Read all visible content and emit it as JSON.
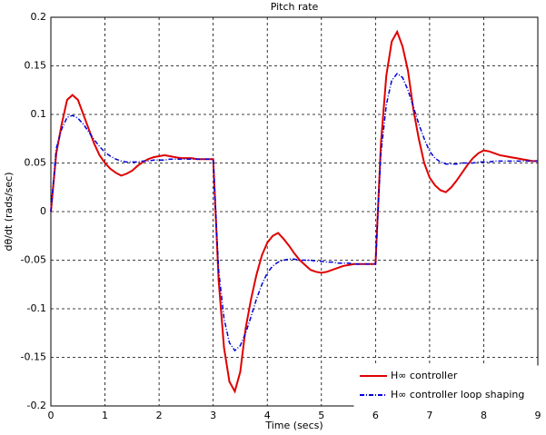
{
  "chart_data": {
    "type": "line",
    "title": "Pitch rate",
    "xlabel": "Time (secs)",
    "ylabel": "dθ/dt (rads/sec)",
    "x": [
      0,
      0.1,
      0.2,
      0.3,
      0.4,
      0.5,
      0.6,
      0.7,
      0.8,
      0.9,
      1,
      1.1,
      1.2,
      1.3,
      1.4,
      1.5,
      1.6,
      1.7,
      1.8,
      1.9,
      2,
      2.1,
      2.2,
      2.3,
      2.4,
      2.5,
      2.6,
      2.7,
      2.8,
      2.9,
      3,
      3.1,
      3.2,
      3.3,
      3.4,
      3.5,
      3.6,
      3.7,
      3.8,
      3.9,
      4,
      4.1,
      4.2,
      4.3,
      4.4,
      4.5,
      4.6,
      4.7,
      4.8,
      4.9,
      5,
      5.1,
      5.2,
      5.3,
      5.4,
      5.5,
      5.6,
      5.7,
      5.8,
      5.9,
      6,
      6.1,
      6.2,
      6.3,
      6.4,
      6.5,
      6.6,
      6.7,
      6.8,
      6.9,
      7,
      7.1,
      7.2,
      7.3,
      7.4,
      7.5,
      7.6,
      7.7,
      7.8,
      7.9,
      8,
      8.1,
      8.2,
      8.3,
      8.4,
      8.5,
      8.6,
      8.7,
      8.8,
      8.9,
      9
    ],
    "series": [
      {
        "name": "H∞ controller",
        "color": "#e00000",
        "linestyle": "solid",
        "values": [
          0,
          0.06,
          0.09,
          0.115,
          0.12,
          0.115,
          0.1,
          0.085,
          0.07,
          0.058,
          0.05,
          0.044,
          0.04,
          0.037,
          0.039,
          0.042,
          0.047,
          0.051,
          0.054,
          0.056,
          0.057,
          0.058,
          0.057,
          0.056,
          0.055,
          0.055,
          0.055,
          0.054,
          0.054,
          0.054,
          0.054,
          -0.07,
          -0.14,
          -0.175,
          -0.185,
          -0.165,
          -0.12,
          -0.09,
          -0.065,
          -0.045,
          -0.032,
          -0.025,
          -0.022,
          -0.028,
          -0.035,
          -0.043,
          -0.05,
          -0.055,
          -0.06,
          -0.062,
          -0.063,
          -0.062,
          -0.06,
          -0.058,
          -0.056,
          -0.055,
          -0.054,
          -0.054,
          -0.054,
          -0.054,
          -0.054,
          0.07,
          0.14,
          0.175,
          0.185,
          0.17,
          0.145,
          0.105,
          0.075,
          0.05,
          0.035,
          0.027,
          0.022,
          0.02,
          0.025,
          0.032,
          0.04,
          0.048,
          0.055,
          0.06,
          0.063,
          0.062,
          0.06,
          0.058,
          0.057,
          0.056,
          0.055,
          0.054,
          0.053,
          0.052,
          0.052
        ]
      },
      {
        "name": "H∞ controller loop shaping",
        "color": "#0000dd",
        "linestyle": "dashed",
        "values": [
          0,
          0.065,
          0.085,
          0.097,
          0.099,
          0.096,
          0.09,
          0.082,
          0.074,
          0.067,
          0.061,
          0.057,
          0.054,
          0.052,
          0.051,
          0.051,
          0.051,
          0.052,
          0.052,
          0.053,
          0.053,
          0.053,
          0.054,
          0.054,
          0.054,
          0.054,
          0.054,
          0.054,
          0.054,
          0.054,
          0.054,
          -0.06,
          -0.11,
          -0.135,
          -0.143,
          -0.138,
          -0.125,
          -0.108,
          -0.09,
          -0.075,
          -0.063,
          -0.056,
          -0.052,
          -0.05,
          -0.049,
          -0.049,
          -0.05,
          -0.05,
          -0.05,
          -0.051,
          -0.051,
          -0.052,
          -0.052,
          -0.053,
          -0.053,
          -0.053,
          -0.054,
          -0.054,
          -0.054,
          -0.054,
          -0.054,
          0.06,
          0.11,
          0.135,
          0.142,
          0.138,
          0.125,
          0.108,
          0.09,
          0.075,
          0.062,
          0.055,
          0.051,
          0.049,
          0.049,
          0.049,
          0.05,
          0.05,
          0.05,
          0.051,
          0.051,
          0.051,
          0.052,
          0.052,
          0.052,
          0.052,
          0.052,
          0.052,
          0.052,
          0.052,
          0.052
        ]
      }
    ],
    "xlim": [
      0,
      9
    ],
    "xticks": [
      0,
      1,
      2,
      3,
      4,
      5,
      6,
      7,
      8,
      9
    ],
    "ylim": [
      -0.2,
      0.2
    ],
    "yticks": [
      -0.2,
      -0.15,
      -0.1,
      -0.05,
      0,
      0.05,
      0.1,
      0.15,
      0.2
    ],
    "grid": true,
    "legend": "lower right"
  }
}
